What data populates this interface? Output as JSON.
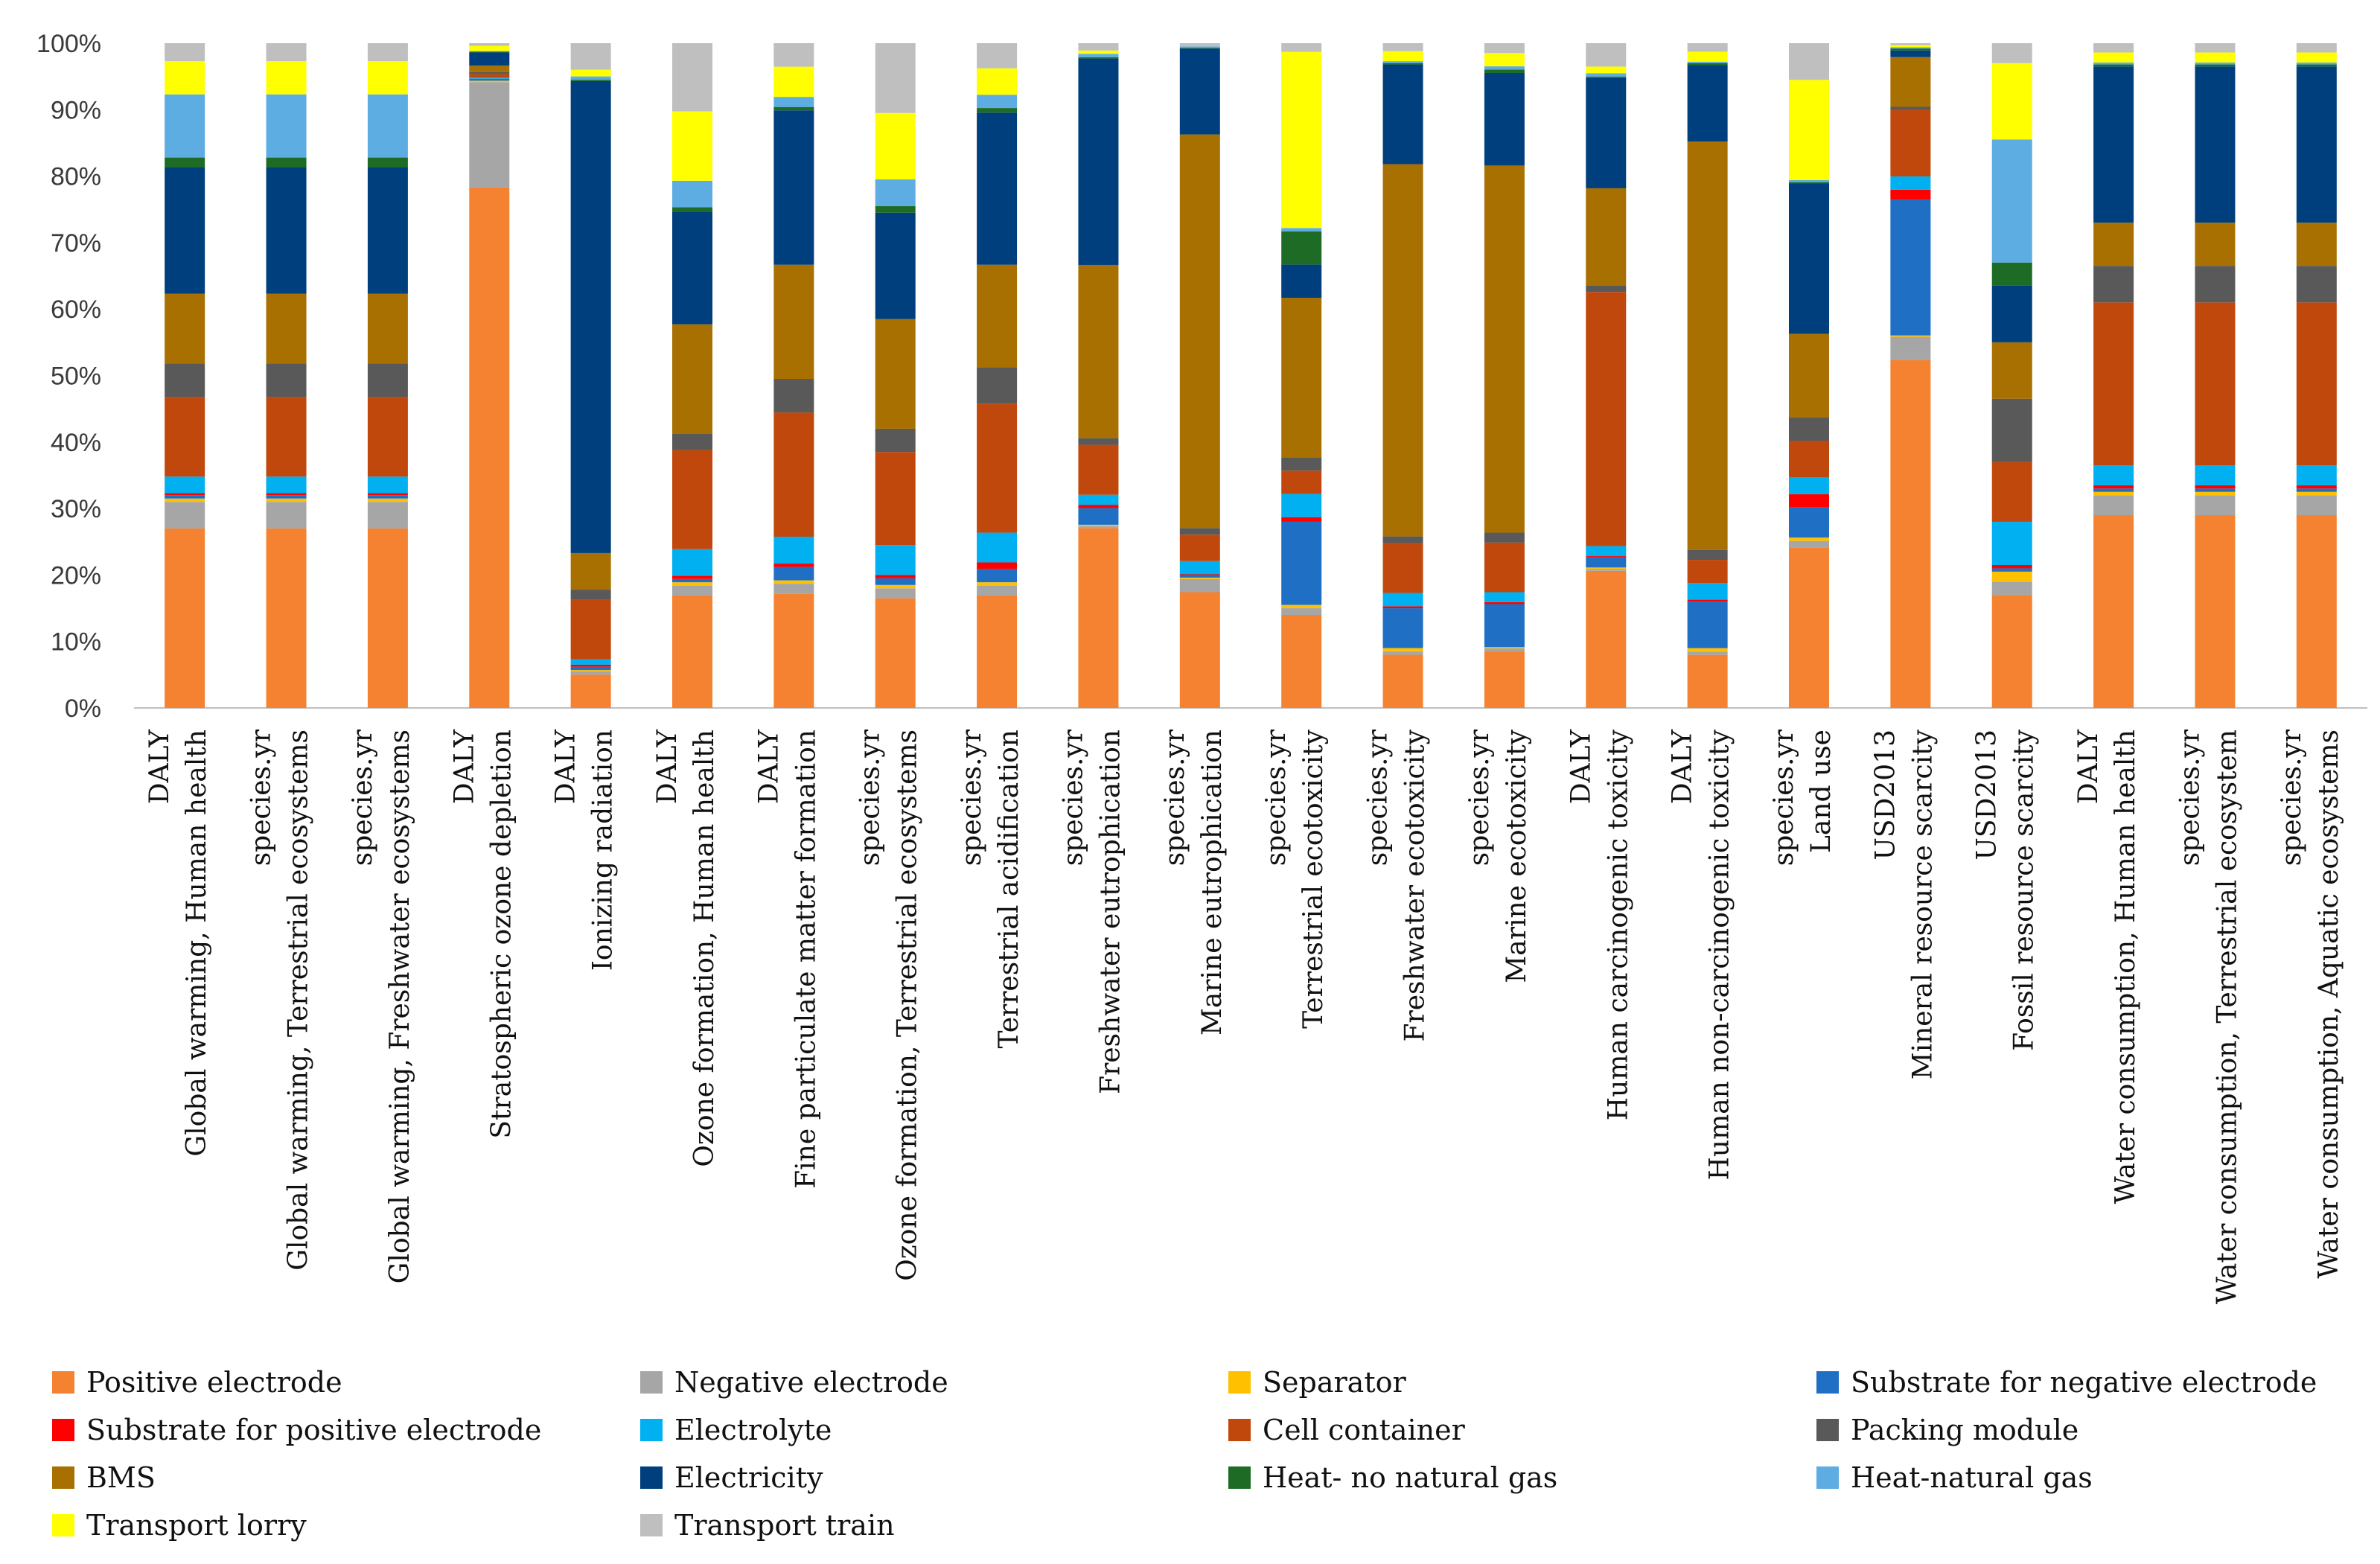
{
  "chart_data": {
    "type": "bar",
    "stacked": true,
    "percent": true,
    "ylim": [
      0,
      100
    ],
    "yticks": [
      "0%",
      "10%",
      "20%",
      "30%",
      "40%",
      "50%",
      "60%",
      "70%",
      "80%",
      "90%",
      "100%"
    ],
    "grid": false,
    "legend_position": "bottom",
    "categories": [
      {
        "unit": "DALY",
        "name": "Global warming, Human health"
      },
      {
        "unit": "species.yr",
        "name": "Global warming, Terrestrial ecosystems"
      },
      {
        "unit": "species.yr",
        "name": "Global warming, Freshwater ecosystems"
      },
      {
        "unit": "DALY",
        "name": "Stratospheric ozone depletion"
      },
      {
        "unit": "DALY",
        "name": "Ionizing radiation"
      },
      {
        "unit": "DALY",
        "name": "Ozone formation, Human health"
      },
      {
        "unit": "DALY",
        "name": "Fine particulate matter formation"
      },
      {
        "unit": "species.yr",
        "name": "Ozone formation, Terrestrial ecosystems"
      },
      {
        "unit": "species.yr",
        "name": "Terrestrial acidification"
      },
      {
        "unit": "species.yr",
        "name": "Freshwater eutrophication"
      },
      {
        "unit": "species.yr",
        "name": "Marine eutrophication"
      },
      {
        "unit": "species.yr",
        "name": "Terrestrial ecotoxicity"
      },
      {
        "unit": "species.yr",
        "name": "Freshwater ecotoxicity"
      },
      {
        "unit": "species.yr",
        "name": "Marine ecotoxicity"
      },
      {
        "unit": "DALY",
        "name": "Human carcinogenic toxicity"
      },
      {
        "unit": "DALY",
        "name": "Human non-carcinogenic toxicity"
      },
      {
        "unit": "species.yr",
        "name": "Land use"
      },
      {
        "unit": "USD2013",
        "name": "Mineral resource scarcity"
      },
      {
        "unit": "USD2013",
        "name": "Fossil resource scarcity"
      },
      {
        "unit": "DALY",
        "name": "Water consumption, Human health"
      },
      {
        "unit": "species.yr",
        "name": "Water consumption, Terrestrial ecosystem"
      },
      {
        "unit": "species.yr",
        "name": "Water consumption, Aquatic ecosystems"
      }
    ],
    "series": [
      {
        "name": "Positive electrode",
        "color": "#F58231",
        "values": [
          27,
          27,
          27,
          79,
          5,
          17,
          17,
          16.5,
          17,
          27,
          17.5,
          14,
          8,
          8.5,
          20.5,
          8,
          24,
          52.5,
          17,
          29,
          29,
          29
        ]
      },
      {
        "name": "Negative electrode",
        "color": "#A6A6A6",
        "values": [
          4,
          4,
          4,
          16,
          0.5,
          1.5,
          1.5,
          1.5,
          1.5,
          0.3,
          2,
          1,
          0.5,
          0.5,
          0.3,
          0.5,
          1,
          3.5,
          2,
          3,
          3,
          3
        ]
      },
      {
        "name": "Separator",
        "color": "#FFC000",
        "values": [
          0.5,
          0.5,
          0.5,
          0.2,
          0.2,
          0.5,
          0.5,
          0.5,
          0.5,
          0.2,
          0.2,
          0.5,
          0.5,
          0.2,
          0.2,
          0.5,
          0.5,
          0.2,
          1.5,
          0.5,
          0.5,
          0.5
        ]
      },
      {
        "name": "Substrate for negative electrode",
        "color": "#1F6FC5",
        "values": [
          0.5,
          0.5,
          0.5,
          0.2,
          0.5,
          0.5,
          2,
          1,
          2,
          2.5,
          0.3,
          12.5,
          6,
          6.5,
          1.5,
          7,
          4.5,
          20.5,
          0.5,
          0.5,
          0.5,
          0.5
        ]
      },
      {
        "name": "Substrate for positive electrode",
        "color": "#FF0000",
        "values": [
          0.3,
          0.3,
          0.3,
          0.1,
          0.3,
          0.5,
          0.5,
          0.5,
          1,
          0.5,
          0.2,
          0.7,
          0.3,
          0.3,
          0.2,
          0.3,
          2,
          1.5,
          0.5,
          0.5,
          0.5,
          0.5
        ]
      },
      {
        "name": "Electrolyte",
        "color": "#00B0F0",
        "values": [
          2.5,
          2.5,
          2.5,
          0.2,
          0.8,
          4,
          4,
          4.5,
          4.5,
          1.5,
          2,
          3.5,
          2,
          1.5,
          1.5,
          2.5,
          2.5,
          2,
          6.5,
          3,
          3,
          3
        ]
      },
      {
        "name": "Cell container",
        "color": "#C0480D",
        "values": [
          12,
          12,
          12,
          0.5,
          9,
          15,
          18.5,
          14,
          19.5,
          7.5,
          4,
          3.5,
          7.5,
          7.5,
          38,
          3.5,
          5.5,
          10,
          9,
          24.5,
          24.5,
          24.5
        ]
      },
      {
        "name": "Packing module",
        "color": "#595959",
        "values": [
          5,
          5,
          5,
          0.3,
          1.5,
          2.5,
          5,
          3.5,
          5.5,
          1,
          1,
          2,
          1,
          1.5,
          1,
          1.5,
          3.5,
          0.5,
          9.5,
          5.5,
          5.5,
          5.5
        ]
      },
      {
        "name": "BMS",
        "color": "#A87000",
        "values": [
          10.5,
          10.5,
          10.5,
          1,
          5.5,
          16.5,
          17,
          16.5,
          15.5,
          26,
          59.5,
          24,
          56,
          55.5,
          14.5,
          61.5,
          12.5,
          7.5,
          8.5,
          6.5,
          6.5,
          6.5
        ]
      },
      {
        "name": "Electricity",
        "color": "#003F7D",
        "values": [
          19,
          19,
          19,
          2,
          71,
          17,
          23,
          16,
          23,
          31,
          13,
          5,
          15,
          14,
          16.5,
          11.5,
          22.5,
          1,
          8.5,
          23.5,
          23.5,
          23.5
        ]
      },
      {
        "name": "Heat- no natural gas",
        "color": "#1E6B26",
        "values": [
          1.5,
          1.5,
          1.5,
          0.1,
          0.2,
          0.7,
          0.5,
          1,
          0.7,
          0.2,
          0.1,
          5,
          0.2,
          0.5,
          0.2,
          0.3,
          0.2,
          0.3,
          3.5,
          0.3,
          0.3,
          0.3
        ]
      },
      {
        "name": "Heat-natural gas",
        "color": "#5DADE2",
        "values": [
          9.5,
          9.5,
          9.5,
          0.1,
          0.5,
          4,
          1.5,
          4,
          2,
          0.5,
          0.2,
          0.5,
          0.3,
          0.5,
          0.5,
          0.2,
          0.3,
          0.2,
          18.5,
          0.3,
          0.3,
          0.3
        ]
      },
      {
        "name": "Transport lorry",
        "color": "#FFFF00",
        "values": [
          5,
          5,
          5,
          0.8,
          1,
          10.5,
          4.5,
          10,
          4,
          0.5,
          0,
          26.5,
          1.5,
          2,
          1,
          1.5,
          15,
          0.3,
          11.5,
          1.5,
          1.5,
          1.5
        ]
      },
      {
        "name": "Transport train",
        "color": "#BFBFBF",
        "values": [
          2.7,
          2.7,
          2.7,
          0.4,
          4,
          10.3,
          3.5,
          10.5,
          3.8,
          1.1,
          0.5,
          1.3,
          1.2,
          1.5,
          3.5,
          1.3,
          5.5,
          0.3,
          3,
          1.4,
          1.4,
          1.4
        ]
      }
    ]
  }
}
